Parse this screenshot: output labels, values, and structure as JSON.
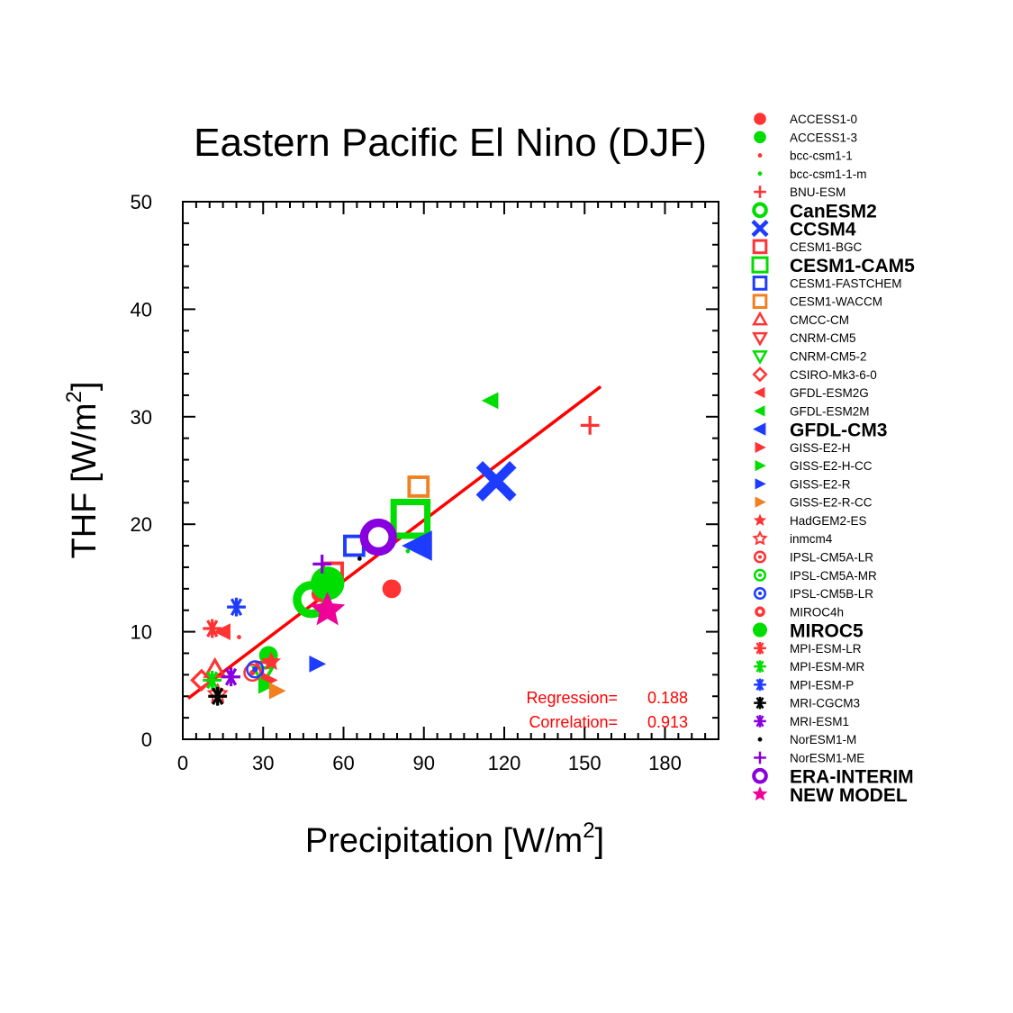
{
  "chart_data": {
    "type": "scatter",
    "title": "Eastern Pacific  El Nino (DJF)",
    "xlabel": "Precipitation [W/m",
    "xlabel_sup": "2",
    "xlabel_end": "]",
    "ylabel": "THF [W/m",
    "ylabel_sup": "2",
    "ylabel_end": "]",
    "xlim": [
      0,
      200
    ],
    "ylim": [
      0,
      50
    ],
    "xticks": [
      0,
      30,
      60,
      90,
      120,
      150,
      180
    ],
    "yticks": [
      0,
      10,
      20,
      30,
      40,
      50
    ],
    "regression_line": {
      "x": [
        2,
        156
      ],
      "y": [
        3.8,
        32.8
      ],
      "color": "#ff0000"
    },
    "stats": [
      {
        "label": "Regression=",
        "value": "0.188"
      },
      {
        "label": "Correlation=",
        "value": "0.913"
      }
    ],
    "series": [
      {
        "name": "ACCESS1-0",
        "color": "#ff3333",
        "marker": "dot",
        "size": "m",
        "x": 78,
        "y": 14
      },
      {
        "name": "ACCESS1-3",
        "color": "#00dd00",
        "marker": "dot",
        "size": "m",
        "x": 32,
        "y": 7.8
      },
      {
        "name": "bcc-csm1-1",
        "color": "#ff3333",
        "marker": "smalldot",
        "size": "s",
        "x": 21,
        "y": 9.5
      },
      {
        "name": "bcc-csm1-1-m",
        "color": "#00dd00",
        "marker": "smalldot",
        "size": "s",
        "x": 84,
        "y": 17.5
      },
      {
        "name": "BNU-ESM",
        "color": "#ff3333",
        "marker": "plus",
        "size": "m",
        "x": 152,
        "y": 29.2
      },
      {
        "name": "CanESM2",
        "color": "#00dd00",
        "marker": "circle",
        "size": "l",
        "x": 48,
        "y": 13
      },
      {
        "name": "CCSM4",
        "color": "#1e3cff",
        "marker": "x",
        "size": "l",
        "x": 117,
        "y": 24
      },
      {
        "name": "CESM1-BGC",
        "color": "#ff3333",
        "marker": "square",
        "size": "m",
        "x": 56,
        "y": 15.5
      },
      {
        "name": "CESM1-CAM5",
        "color": "#00dd00",
        "marker": "square",
        "size": "l",
        "x": 85,
        "y": 20.5
      },
      {
        "name": "CESM1-FASTCHEM",
        "color": "#1e3cff",
        "marker": "square",
        "size": "m",
        "x": 64,
        "y": 18
      },
      {
        "name": "CESM1-WACCM",
        "color": "#f08020",
        "marker": "square",
        "size": "m",
        "x": 88,
        "y": 23.5
      },
      {
        "name": "CMCC-CM",
        "color": "#ff3333",
        "marker": "triangle",
        "size": "m",
        "x": 12,
        "y": 6.5
      },
      {
        "name": "CNRM-CM5",
        "color": "#ff3333",
        "marker": "triangledown",
        "size": "m",
        "x": 31,
        "y": 6.5
      },
      {
        "name": "CNRM-CM5-2",
        "color": "#00dd00",
        "marker": "triangledown",
        "size": "m",
        "x": 30,
        "y": 6
      },
      {
        "name": "CSIRO-Mk3-6-0",
        "color": "#ff3333",
        "marker": "diamond",
        "size": "m",
        "x": 7,
        "y": 5.5
      },
      {
        "name": "GFDL-ESM2G",
        "color": "#ff3333",
        "marker": "triangleleft",
        "size": "m",
        "x": 15,
        "y": 10
      },
      {
        "name": "GFDL-ESM2M",
        "color": "#00dd00",
        "marker": "triangleleft",
        "size": "m",
        "x": 115,
        "y": 31.5
      },
      {
        "name": "GFDL-CM3",
        "color": "#1e3cff",
        "marker": "triangleleft",
        "size": "l",
        "x": 88,
        "y": 18
      },
      {
        "name": "GISS-E2-H",
        "color": "#ff3333",
        "marker": "triangleright",
        "size": "m",
        "x": 32,
        "y": 5.5
      },
      {
        "name": "GISS-E2-H-CC",
        "color": "#00dd00",
        "marker": "triangleright",
        "size": "m",
        "x": 31,
        "y": 5
      },
      {
        "name": "GISS-E2-R",
        "color": "#1e3cff",
        "marker": "triangleright",
        "size": "m",
        "x": 50,
        "y": 7
      },
      {
        "name": "GISS-E2-R-CC",
        "color": "#f08020",
        "marker": "triangleright",
        "size": "m",
        "x": 35,
        "y": 4.5
      },
      {
        "name": "HadGEM2-ES",
        "color": "#ff3333",
        "marker": "star",
        "size": "m",
        "x": 33,
        "y": 7.2
      },
      {
        "name": "inmcm4",
        "color": "#ff3333",
        "marker": "starhollow",
        "size": "m",
        "x": 13,
        "y": 4.2
      },
      {
        "name": "IPSL-CM5A-LR",
        "color": "#ff3333",
        "marker": "bullseye",
        "size": "m",
        "x": 26,
        "y": 6.2
      },
      {
        "name": "IPSL-CM5A-MR",
        "color": "#00dd00",
        "marker": "bullseye",
        "size": "m",
        "x": 53,
        "y": 14.5
      },
      {
        "name": "IPSL-CM5B-LR",
        "color": "#1e3cff",
        "marker": "bullseye",
        "size": "m",
        "x": 27,
        "y": 6.5
      },
      {
        "name": "MIROC4h",
        "color": "#ff3333",
        "marker": "dotcircle",
        "size": "m",
        "x": 51,
        "y": 13.5
      },
      {
        "name": "MIROC5",
        "color": "#00dd00",
        "marker": "dot",
        "size": "l",
        "x": 54,
        "y": 14.5
      },
      {
        "name": "MPI-ESM-LR",
        "color": "#ff3333",
        "marker": "asterisk",
        "size": "m",
        "x": 11,
        "y": 10.3
      },
      {
        "name": "MPI-ESM-MR",
        "color": "#00dd00",
        "marker": "asterisk",
        "size": "m",
        "x": 11,
        "y": 5.5
      },
      {
        "name": "MPI-ESM-P",
        "color": "#1e3cff",
        "marker": "asterisk",
        "size": "m",
        "x": 20,
        "y": 12.3
      },
      {
        "name": "MRI-CGCM3",
        "color": "#000000",
        "marker": "asterisk",
        "size": "m",
        "x": 13,
        "y": 4
      },
      {
        "name": "MRI-ESM1",
        "color": "#8800dd",
        "marker": "asterisk",
        "size": "m",
        "x": 18,
        "y": 5.8
      },
      {
        "name": "NorESM1-M",
        "color": "#000000",
        "marker": "smalldot",
        "size": "s",
        "x": 66,
        "y": 16.8
      },
      {
        "name": "NorESM1-ME",
        "color": "#8800dd",
        "marker": "plus",
        "size": "m",
        "x": 52,
        "y": 16.3
      },
      {
        "name": "ERA-INTERIM",
        "color": "#8800dd",
        "marker": "circle",
        "size": "l",
        "x": 73,
        "y": 18.8
      },
      {
        "name": "NEW MODEL",
        "color": "#ee0099",
        "marker": "star",
        "size": "l",
        "x": 54,
        "y": 12
      }
    ]
  }
}
